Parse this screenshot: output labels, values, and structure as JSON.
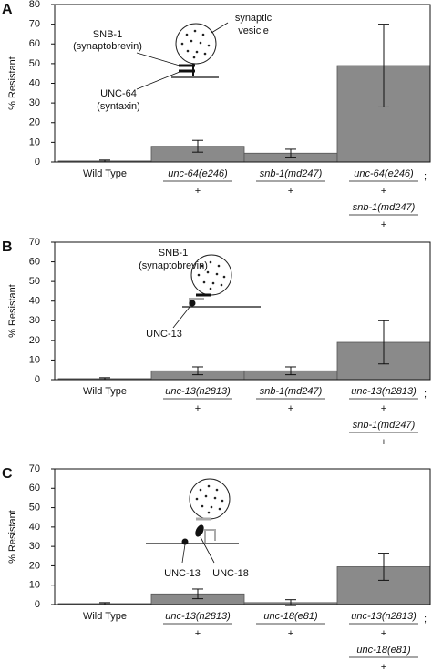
{
  "chart_data": [
    {
      "type": "bar",
      "panel": "A",
      "ylabel": "% Resistant",
      "ylim": [
        0,
        80
      ],
      "yticks": [
        0,
        10,
        20,
        30,
        40,
        50,
        60,
        70,
        80
      ],
      "color": "#8a8a8a",
      "categories": [
        {
          "label": "Wild Type"
        },
        {
          "alleles": [
            {
              "gene": "unc-64(e246)",
              "over": "+"
            }
          ]
        },
        {
          "alleles": [
            {
              "gene": "snb-1(md247)",
              "over": "+"
            }
          ]
        },
        {
          "alleles": [
            {
              "gene": "unc-64(e246)",
              "over": "+"
            },
            {
              "gene": "snb-1(md247)",
              "over": "+"
            }
          ],
          "separator": ";"
        }
      ],
      "values": [
        0.5,
        8,
        4.5,
        49
      ],
      "errors": [
        0.5,
        3,
        2,
        21
      ],
      "annotations": [
        [
          "SNB-1",
          "(synaptobrevin)"
        ],
        [
          "synaptic",
          "vesicle"
        ],
        [
          "UNC-64",
          "(syntaxin)"
        ]
      ]
    },
    {
      "type": "bar",
      "panel": "B",
      "ylabel": "% Resistant",
      "ylim": [
        0,
        70
      ],
      "yticks": [
        0,
        10,
        20,
        30,
        40,
        50,
        60,
        70
      ],
      "color": "#8a8a8a",
      "categories": [
        {
          "label": "Wild Type"
        },
        {
          "alleles": [
            {
              "gene": "unc-13(n2813)",
              "over": "+"
            }
          ]
        },
        {
          "alleles": [
            {
              "gene": "snb-1(md247)",
              "over": "+"
            }
          ]
        },
        {
          "alleles": [
            {
              "gene": "unc-13(n2813)",
              "over": "+"
            },
            {
              "gene": "snb-1(md247)",
              "over": "+"
            }
          ],
          "separator": ";"
        }
      ],
      "values": [
        0.5,
        4.5,
        4.5,
        19
      ],
      "errors": [
        0.5,
        2,
        2,
        11
      ],
      "annotations": [
        [
          "SNB-1",
          "(synaptobrevin)"
        ],
        [
          "UNC-13"
        ]
      ]
    },
    {
      "type": "bar",
      "panel": "C",
      "ylabel": "% Resistant",
      "ylim": [
        0,
        70
      ],
      "yticks": [
        0,
        10,
        20,
        30,
        40,
        50,
        60,
        70
      ],
      "color": "#8a8a8a",
      "categories": [
        {
          "label": "Wild Type"
        },
        {
          "alleles": [
            {
              "gene": "unc-13(n2813)",
              "over": "+"
            }
          ]
        },
        {
          "alleles": [
            {
              "gene": "unc-18(e81)",
              "over": "+"
            }
          ]
        },
        {
          "alleles": [
            {
              "gene": "unc-13(n2813)",
              "over": "+"
            },
            {
              "gene": "unc-18(e81)",
              "over": "+"
            }
          ],
          "separator": ";"
        }
      ],
      "values": [
        0.5,
        5.5,
        1,
        19.5
      ],
      "errors": [
        0.5,
        2.5,
        1.5,
        7
      ],
      "annotations": [
        [
          "UNC-13"
        ],
        [
          "UNC-18"
        ]
      ]
    }
  ]
}
